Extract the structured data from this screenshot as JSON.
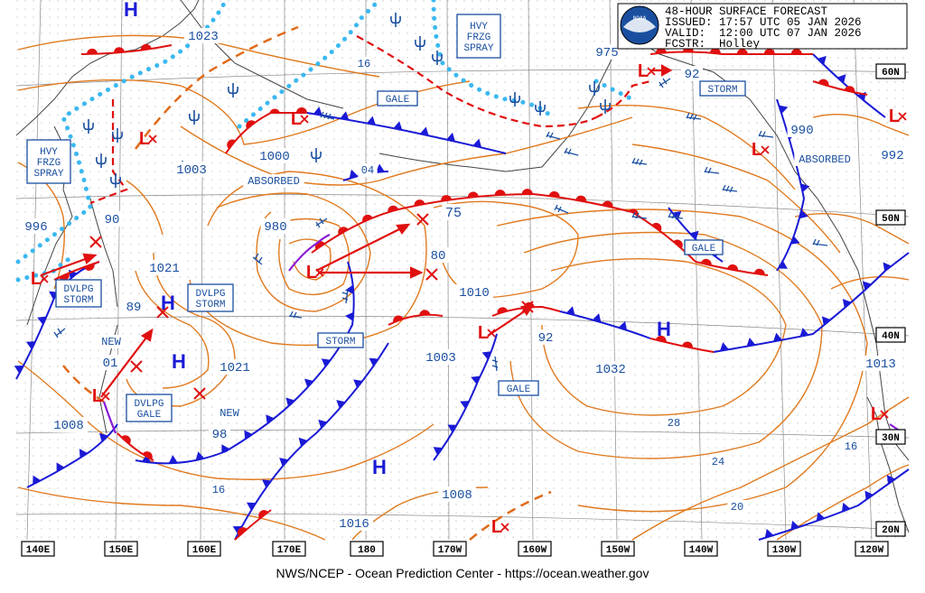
{
  "header": {
    "title": "48-HOUR SURFACE FORECAST",
    "issued": "ISSUED: 17:57 UTC 05 JAN 2026",
    "valid": "VALID:  12:00 UTC 07 JAN 2026",
    "forecaster": "FCSTR:  Holley",
    "logo_text": "NOAA"
  },
  "footer": {
    "credit": "NWS/NCEP - Ocean Prediction Center - https://ocean.weather.gov"
  },
  "lon_labels": [
    "140E",
    "150E",
    "160E",
    "170E",
    "180",
    "170W",
    "160W",
    "150W",
    "140W",
    "130W",
    "120W"
  ],
  "lat_labels": [
    "60N",
    "50N",
    "40N",
    "30N",
    "20N"
  ],
  "pressure_labels": [
    "1023",
    "16",
    "975",
    "92",
    "990",
    "992",
    "1000",
    "ABSORBED",
    "1003",
    "04",
    "996",
    "90",
    "980",
    "75",
    "80",
    "1021",
    "89",
    "01",
    "1010",
    "92",
    "1032",
    "1021",
    "1003",
    "1013",
    "1008",
    "98",
    "16",
    "28",
    "24",
    "20",
    "16",
    "1008",
    "1016",
    "ABSORBED",
    "NEW",
    "NEW"
  ],
  "boxes": [
    "HVY FRZG SPRAY",
    "HVY FRZG SPRAY",
    "GALE",
    "STORM",
    "GALE",
    "DVLPG STORM",
    "DVLPG STORM",
    "STORM",
    "GALE",
    "DVLPG GALE"
  ],
  "highs": [
    "H",
    "H",
    "H",
    "H"
  ],
  "lows": [
    "L",
    "L",
    "L",
    "L",
    "L",
    "L",
    "L",
    "L",
    "L"
  ],
  "colors": {
    "isobar": "#e07a1f",
    "cold_front": "#1a1ad6",
    "warm_front": "#e01010",
    "occluded": "#8a1ad6",
    "ice": "#3ab8f0",
    "label": "#1a4fa0",
    "grid": "#9a9a9a"
  }
}
